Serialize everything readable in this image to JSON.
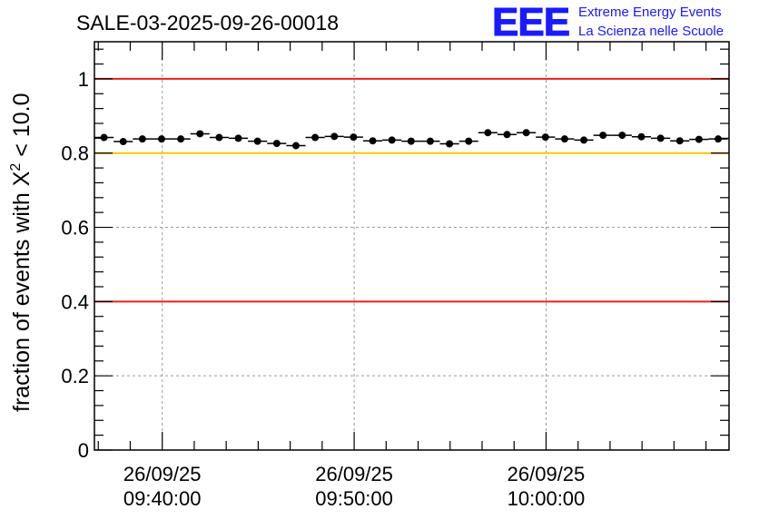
{
  "header": {
    "run_title": "SALE-03-2025-09-26-00018",
    "logo_text": "EEE",
    "logo_line1": "Extreme Energy Events",
    "logo_line2": "La Scienza nelle Scuole",
    "logo_color": "#1a1aff"
  },
  "chart_data": {
    "type": "scatter",
    "title": "SALE-03-2025-09-26-00018",
    "xlabel": "",
    "ylabel_prefix": "fraction of events with ",
    "ylabel_symbol": "X",
    "ylabel_exponent": "2",
    "ylabel_suffix": " < 10.0",
    "ylim": [
      0,
      1.1
    ],
    "xlim_minutes": [
      0,
      49.6
    ],
    "grid": true,
    "yticks": [
      0,
      0.2,
      0.4,
      0.6,
      0.8,
      1
    ],
    "ytick_labels": [
      "0",
      "0.2",
      "0.4",
      "0.6",
      "0.8",
      "1"
    ],
    "xticks": [
      {
        "minute": 5.3,
        "date": "26/09/25",
        "time": "09:40:00"
      },
      {
        "minute": 20.3,
        "date": "26/09/25",
        "time": "09:50:00"
      },
      {
        "minute": 35.3,
        "date": "26/09/25",
        "time": "10:00:00"
      }
    ],
    "reference_lines": [
      {
        "y": 1.0,
        "color": "#e8201c"
      },
      {
        "y": 0.8,
        "color": "#ffc400"
      },
      {
        "y": 0.4,
        "color": "#e8201c"
      }
    ],
    "bin_width_minutes": 1.5,
    "series": [
      {
        "name": "fraction",
        "color": "#000000",
        "x_minutes": [
          0.75,
          2.25,
          3.75,
          5.25,
          6.75,
          8.25,
          9.75,
          11.25,
          12.75,
          14.25,
          15.75,
          17.25,
          18.75,
          20.25,
          21.75,
          23.25,
          24.75,
          26.25,
          27.75,
          29.25,
          30.75,
          32.25,
          33.75,
          35.25,
          36.75,
          38.25,
          39.75,
          41.25,
          42.75,
          44.25,
          45.75,
          47.25,
          48.75
        ],
        "values": [
          0.842,
          0.831,
          0.838,
          0.838,
          0.838,
          0.852,
          0.842,
          0.84,
          0.832,
          0.826,
          0.82,
          0.842,
          0.845,
          0.843,
          0.833,
          0.835,
          0.832,
          0.832,
          0.825,
          0.832,
          0.855,
          0.85,
          0.855,
          0.843,
          0.838,
          0.835,
          0.848,
          0.848,
          0.844,
          0.84,
          0.833,
          0.837,
          0.838
        ],
        "errors": [
          0.006,
          0.006,
          0.006,
          0.006,
          0.006,
          0.006,
          0.006,
          0.006,
          0.006,
          0.006,
          0.006,
          0.006,
          0.006,
          0.006,
          0.006,
          0.006,
          0.006,
          0.006,
          0.006,
          0.006,
          0.006,
          0.006,
          0.006,
          0.006,
          0.006,
          0.006,
          0.006,
          0.006,
          0.006,
          0.006,
          0.006,
          0.006,
          0.006
        ]
      }
    ]
  }
}
